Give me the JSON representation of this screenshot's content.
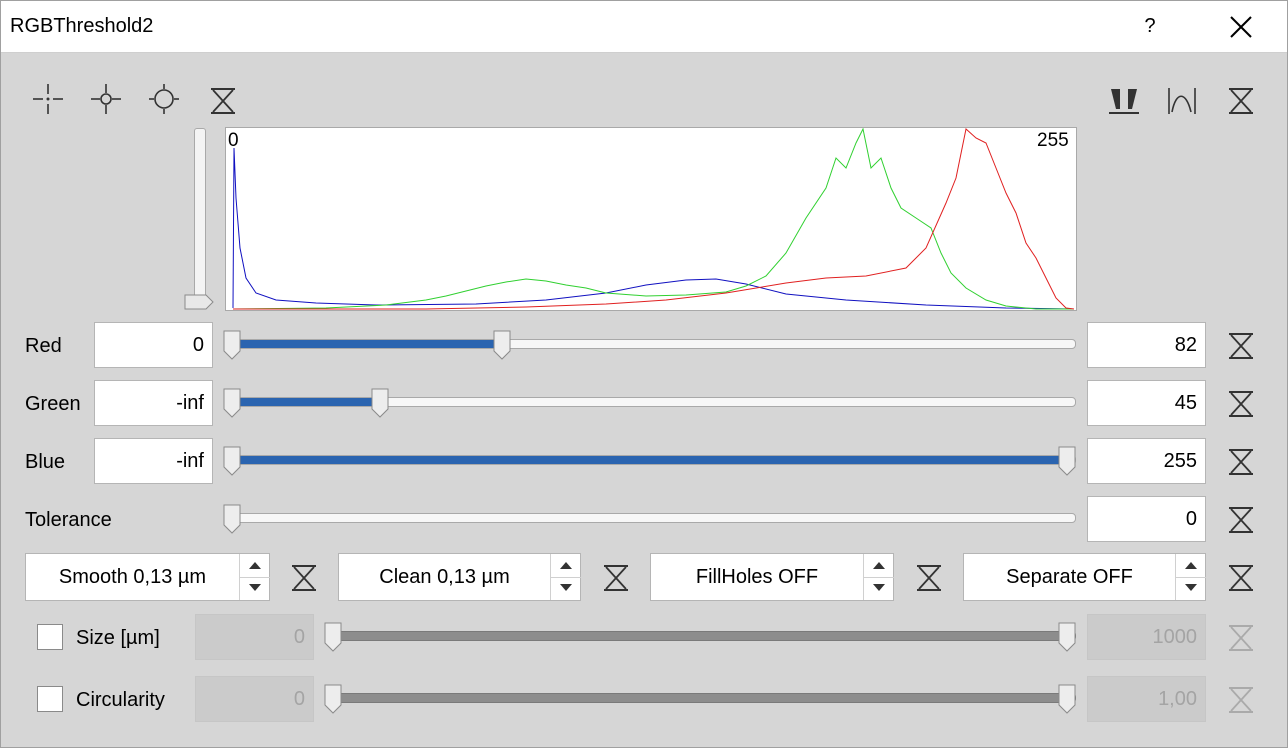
{
  "window": {
    "title": "RGBThreshold2",
    "help": "?",
    "close_icon": "close-icon"
  },
  "toolbar": {
    "left_icons": [
      "crosshair-small-icon",
      "crosshair-medium-icon",
      "crosshair-large-icon",
      "reset-icon"
    ],
    "right_icons": [
      "threshold-range-icon",
      "peak-icon",
      "reset-icon"
    ]
  },
  "histogram": {
    "min_label": "0",
    "max_label": "255",
    "colors": {
      "red": "#e02020",
      "green": "#30d030",
      "blue": "#1010c0"
    }
  },
  "rows": [
    {
      "label": "Red",
      "min": "0",
      "max": "82",
      "low_fraction": 0.0,
      "high_fraction": 0.32
    },
    {
      "label": "Green",
      "min": "-inf",
      "max": "45",
      "low_fraction": 0.0,
      "high_fraction": 0.176
    },
    {
      "label": "Blue",
      "min": "-inf",
      "max": "255",
      "low_fraction": 0.0,
      "high_fraction": 1.0
    }
  ],
  "tolerance": {
    "label": "Tolerance",
    "value": "0",
    "fraction": 0.0
  },
  "spinners": [
    {
      "text": "Smooth 0,13 µm"
    },
    {
      "text": "Clean 0,13 µm"
    },
    {
      "text": "FillHoles OFF"
    },
    {
      "text": "Separate OFF"
    }
  ],
  "filters": [
    {
      "label": "Size [µm]",
      "min": "0",
      "max": "1000",
      "checked": false,
      "enabled": false
    },
    {
      "label": "Circularity",
      "min": "0",
      "max": "1,00",
      "checked": false,
      "enabled": false
    }
  ],
  "accent_color": "#2a64b0"
}
